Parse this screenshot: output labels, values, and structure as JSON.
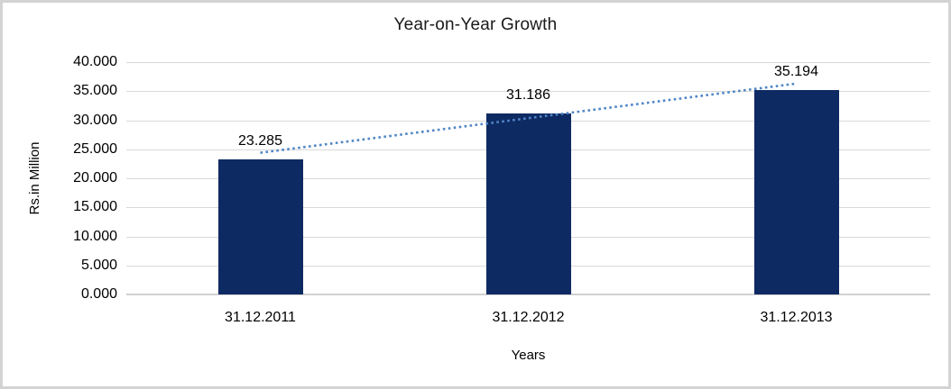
{
  "chart_data": {
    "type": "bar",
    "title": "Year-on-Year Growth",
    "xlabel": "Years",
    "ylabel": "Rs.in Million",
    "categories": [
      "31.12.2011",
      "31.12.2012",
      "31.12.2013"
    ],
    "values": [
      23.285,
      31.186,
      35.194
    ],
    "data_labels": [
      "23.285",
      "31.186",
      "35.194"
    ],
    "ylim": [
      0,
      40
    ],
    "ytick_step": 5,
    "ytick_labels": [
      "0.000",
      "5.000",
      "10.000",
      "15.000",
      "20.000",
      "25.000",
      "30.000",
      "35.000",
      "40.000"
    ],
    "grid": true,
    "legend": "none",
    "trendline": {
      "type": "linear",
      "style": "dotted"
    },
    "colors": {
      "bar": "#0e2a63",
      "trendline": "#4f86c6",
      "gridline": "#d9d9d9",
      "axis_line": "#d1d1d1",
      "text": "#000000",
      "frame_border": "#d3d3d3",
      "background": "#ffffff"
    }
  }
}
